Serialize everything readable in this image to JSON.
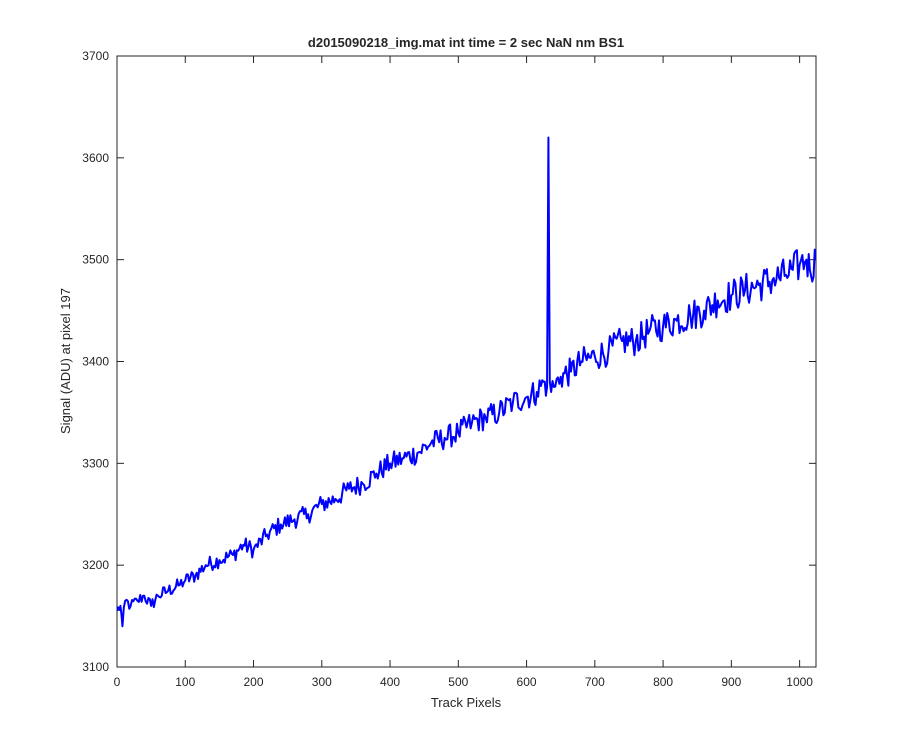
{
  "chart_data": {
    "type": "line",
    "title": "d2015090218_img.mat int time = 2 sec  NaN nm BS1",
    "xlabel": "Track Pixels",
    "ylabel": "Signal (ADU) at pixel 197",
    "xlim": [
      0,
      1024
    ],
    "ylim": [
      3100,
      3700
    ],
    "xticks": [
      0,
      100,
      200,
      300,
      400,
      500,
      600,
      700,
      800,
      900,
      1000
    ],
    "yticks": [
      3100,
      3200,
      3300,
      3400,
      3500,
      3600,
      3700
    ],
    "grid": false,
    "line_color": "#0000ff",
    "series": [
      {
        "x": [
          0,
          5,
          8,
          12,
          20,
          30,
          40,
          50,
          60,
          75,
          90,
          100,
          115,
          130,
          150,
          170,
          185,
          200,
          220,
          240,
          260,
          280,
          300,
          320,
          340,
          360,
          380,
          400,
          420,
          440,
          460,
          480,
          500,
          520,
          540,
          560,
          580,
          600,
          615,
          625,
          630,
          632,
          634,
          636,
          640,
          650,
          665,
          680,
          700,
          720,
          740,
          760,
          780,
          800,
          820,
          840,
          860,
          880,
          900,
          920,
          940,
          960,
          980,
          990,
          1000,
          1010,
          1015,
          1024
        ],
        "y": [
          3155,
          3160,
          3140,
          3165,
          3160,
          3165,
          3170,
          3160,
          3170,
          3175,
          3180,
          3185,
          3190,
          3200,
          3205,
          3210,
          3220,
          3215,
          3230,
          3240,
          3245,
          3250,
          3260,
          3265,
          3275,
          3280,
          3290,
          3300,
          3305,
          3310,
          3320,
          3325,
          3330,
          3340,
          3345,
          3350,
          3360,
          3365,
          3370,
          3380,
          3375,
          3620,
          3380,
          3370,
          3375,
          3385,
          3390,
          3400,
          3405,
          3410,
          3420,
          3420,
          3430,
          3435,
          3440,
          3445,
          3450,
          3460,
          3465,
          3470,
          3475,
          3480,
          3485,
          3490,
          3495,
          3500,
          3490,
          3500
        ]
      }
    ]
  }
}
